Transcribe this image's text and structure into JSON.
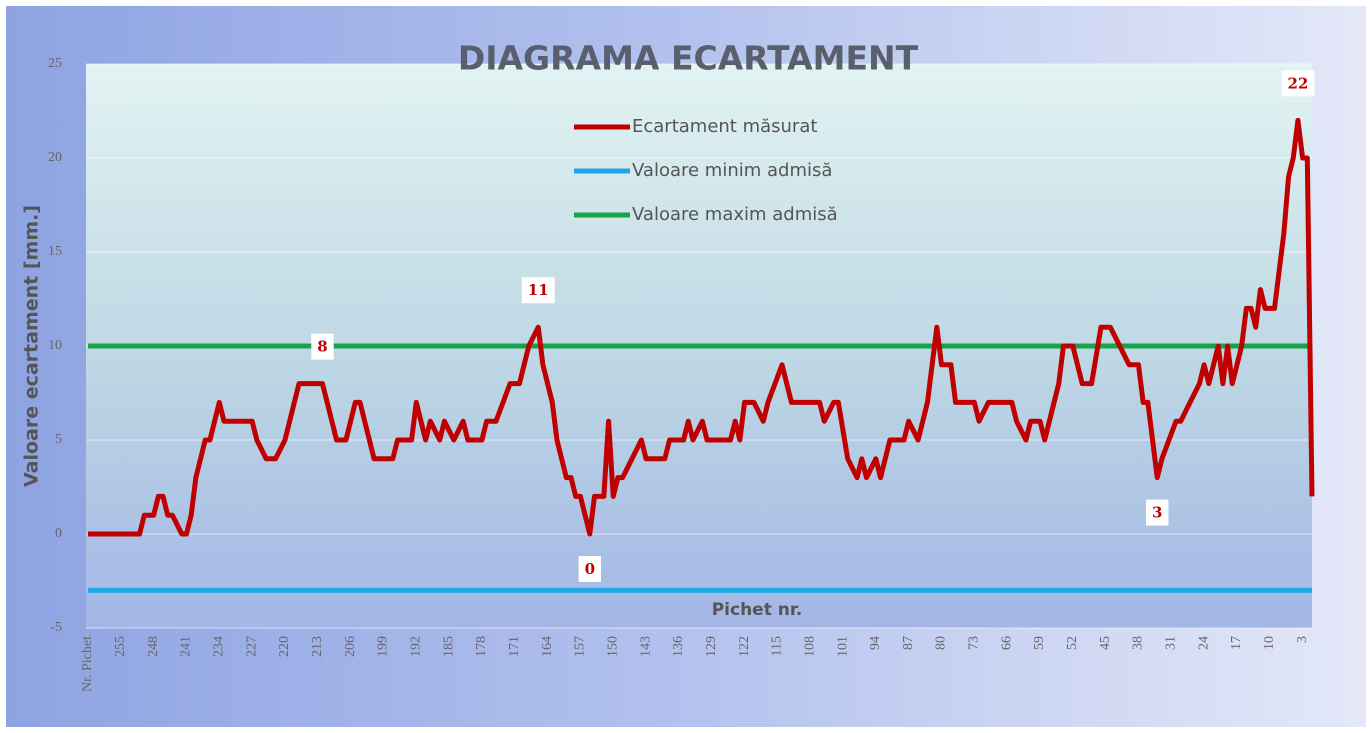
{
  "chart_data": {
    "type": "line",
    "title": "DIAGRAMA ECARTAMENT",
    "x_label": "Pichet nr.",
    "y_label": "Valoare ecartament [mm.]",
    "xlim": [
      262,
      1
    ],
    "xticks": [
      {
        "value": 262,
        "label": "Nr. Pichet"
      },
      255,
      248,
      241,
      234,
      227,
      220,
      213,
      206,
      199,
      192,
      185,
      178,
      171,
      164,
      157,
      150,
      143,
      136,
      129,
      122,
      115,
      108,
      101,
      94,
      87,
      80,
      73,
      66,
      59,
      52,
      45,
      38,
      31,
      24,
      17,
      10,
      3
    ],
    "ylim": [
      -5,
      25
    ],
    "yticks": [
      -5,
      0,
      5,
      10,
      15,
      20,
      25
    ],
    "grid": true,
    "legend": "top",
    "series": [
      {
        "name": "Ecartament măsurat",
        "color": "#c00000",
        "x": [
          262,
          251,
          250,
          248,
          247,
          246,
          245,
          244,
          242,
          241,
          240,
          239,
          237,
          236,
          234,
          233,
          227,
          226,
          224,
          222,
          220,
          218,
          217,
          212,
          210,
          209,
          207,
          205,
          204,
          203,
          201,
          197,
          196,
          193,
          192,
          190,
          189,
          187,
          186,
          184,
          182,
          181,
          178,
          177,
          175,
          172,
          170,
          168,
          166,
          165,
          163,
          162,
          160,
          159,
          158,
          157,
          155,
          154,
          152,
          151,
          150,
          149,
          148,
          146,
          144,
          143,
          139,
          138,
          135,
          134,
          133,
          131,
          130,
          125,
          124,
          123,
          122,
          120,
          118,
          117,
          114,
          112,
          108,
          106,
          105,
          103,
          102,
          100,
          98,
          97,
          96,
          94,
          93,
          91,
          88,
          87,
          85,
          83,
          82,
          81,
          80,
          78,
          77,
          73,
          72,
          70,
          65,
          64,
          62,
          61,
          59,
          58,
          56,
          55,
          54,
          52,
          50,
          48,
          46,
          44,
          42,
          40,
          38,
          37,
          36,
          34,
          33,
          30,
          29,
          27,
          25,
          24,
          23,
          21,
          20,
          19,
          18,
          16,
          15,
          14,
          13,
          12,
          11,
          9,
          7,
          6,
          5,
          4,
          3,
          2,
          1
        ],
        "values": [
          0,
          0,
          1,
          1,
          2,
          2,
          1,
          1,
          0,
          0,
          1,
          3,
          5,
          5,
          7,
          6,
          6,
          5,
          4,
          4,
          5,
          7,
          8,
          8,
          6,
          5,
          5,
          7,
          7,
          6,
          4,
          4,
          5,
          5,
          7,
          5,
          6,
          5,
          6,
          5,
          6,
          5,
          5,
          6,
          6,
          8,
          8,
          10,
          11,
          9,
          7,
          5,
          3,
          3,
          2,
          2,
          0,
          2,
          2,
          6,
          2,
          3,
          3,
          4,
          5,
          4,
          4,
          5,
          5,
          6,
          5,
          6,
          5,
          5,
          6,
          5,
          7,
          7,
          6,
          7,
          9,
          7,
          7,
          7,
          6,
          7,
          7,
          4,
          3,
          4,
          3,
          4,
          3,
          5,
          5,
          6,
          5,
          7,
          9,
          11,
          9,
          9,
          7,
          7,
          6,
          7,
          7,
          6,
          5,
          6,
          6,
          5,
          7,
          8,
          10,
          10,
          8,
          8,
          11,
          11,
          10,
          9,
          9,
          7,
          7,
          3,
          4,
          6,
          6,
          7,
          8,
          9,
          8,
          10,
          8,
          10,
          8,
          10,
          12,
          12,
          11,
          13,
          12,
          12,
          16,
          19,
          20,
          22,
          20,
          20,
          2
        ],
        "value_labels": [
          null,
          null,
          null,
          null,
          null,
          null,
          null,
          null,
          null,
          null,
          null,
          null,
          null,
          null,
          null,
          null,
          null,
          null,
          null,
          null,
          null,
          null,
          null,
          "8",
          null,
          null,
          null,
          null,
          null,
          null,
          null,
          null,
          null,
          null,
          null,
          null,
          null,
          null,
          null,
          null,
          null,
          null,
          null,
          null,
          null,
          null,
          null,
          null,
          "11",
          null,
          null,
          null,
          null,
          null,
          null,
          null,
          "0",
          null,
          null,
          null,
          null,
          null,
          null,
          null,
          null,
          null,
          null,
          null,
          null,
          null,
          null,
          null,
          null,
          null,
          null,
          null,
          null,
          null,
          null,
          null,
          null,
          null,
          null,
          null,
          null,
          null,
          null,
          null,
          null,
          null,
          null,
          null,
          null,
          null,
          null,
          null,
          null,
          null,
          null,
          null,
          null,
          null,
          null,
          null,
          null,
          null,
          null,
          null,
          null,
          null,
          null,
          null,
          null,
          null,
          null,
          null,
          null,
          null,
          null,
          null,
          null,
          null,
          null,
          null,
          null,
          "3",
          null,
          null,
          null,
          null,
          null,
          null,
          null,
          null,
          null,
          null,
          null,
          null,
          null,
          null,
          null,
          null,
          null,
          null,
          null,
          null,
          null,
          "22",
          null,
          null,
          null
        ]
      },
      {
        "name": "Valoare minim admisă",
        "color": "#1ea9e6",
        "x": [
          262,
          1
        ],
        "values": [
          -3,
          -3
        ]
      },
      {
        "name": "Valoare maxim admisă",
        "color": "#17a34a",
        "x": [
          262,
          1
        ],
        "values": [
          10,
          10
        ]
      }
    ]
  }
}
